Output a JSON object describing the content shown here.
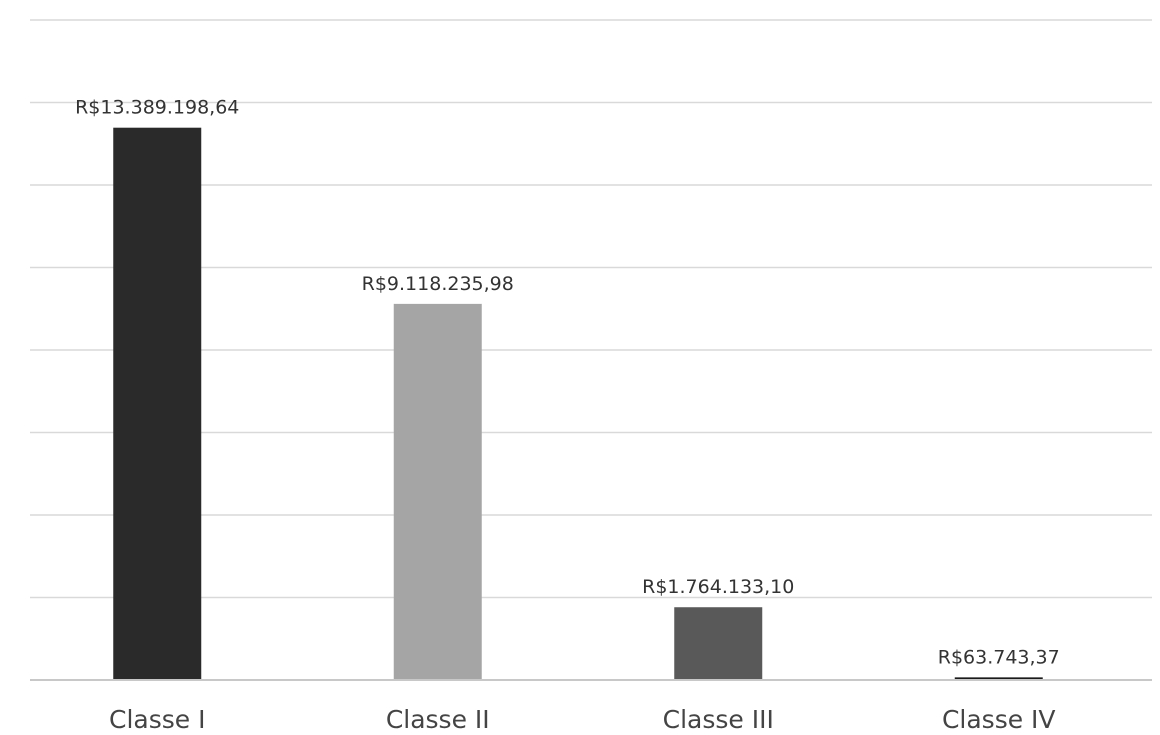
{
  "chart_data": {
    "type": "bar",
    "categories": [
      "Classe I",
      "Classe II",
      "Classe III",
      "Classe IV"
    ],
    "values": [
      13389198.64,
      9118235.98,
      1764133.1,
      63743.37
    ],
    "data_labels": [
      "R$13.389.198,64",
      "R$9.118.235,98",
      "R$1.764.133,10",
      "R$63.743,37"
    ],
    "colors": [
      "#2a2a2a",
      "#a5a5a5",
      "#595959",
      "#1a1a1a"
    ],
    "title": "",
    "xlabel": "",
    "ylabel": "",
    "ylim": [
      0,
      16000000
    ],
    "gridlines_every": 2000000,
    "grid": true,
    "legend": "none",
    "gridline_color": "#d9d9d9"
  }
}
